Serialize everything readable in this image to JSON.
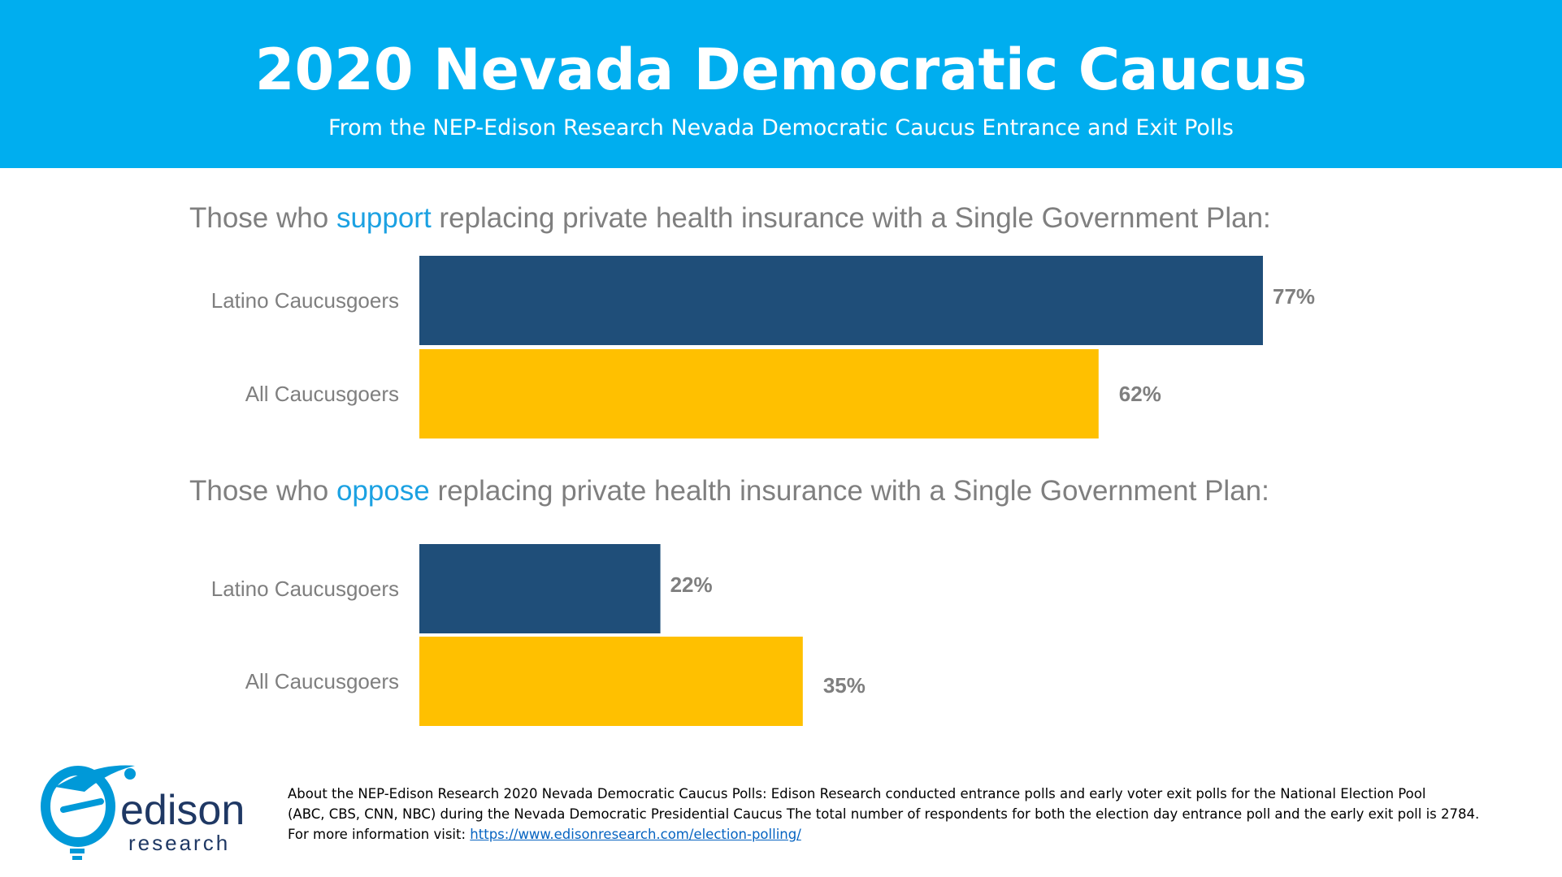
{
  "header": {
    "title": "2020 Nevada Democratic Caucus",
    "subtitle": "From the NEP-Edison Research Nevada Democratic Caucus Entrance and Exit Polls"
  },
  "colors": {
    "header_bg": "#00AEEF",
    "latino": "#1F4E79",
    "all": "#FFC000",
    "highlight": "#1BA1E2",
    "label_text": "#7F7F7F"
  },
  "chart_data": [
    {
      "type": "bar",
      "orientation": "horizontal",
      "title_parts": [
        "Those who ",
        "support",
        " replacing private health insurance with a Single Government Plan:"
      ],
      "categories": [
        "Latino Caucusgoers",
        "All Caucusgoers"
      ],
      "values": [
        77,
        62
      ],
      "value_labels": [
        "77%",
        "62%"
      ],
      "xlim": [
        0,
        100
      ]
    },
    {
      "type": "bar",
      "orientation": "horizontal",
      "title_parts": [
        "Those who ",
        "oppose",
        " replacing private health insurance with a Single Government Plan:"
      ],
      "categories": [
        "Latino Caucusgoers",
        "All Caucusgoers"
      ],
      "values": [
        22,
        35
      ],
      "value_labels": [
        "22%",
        "35%"
      ],
      "xlim": [
        0,
        100
      ]
    }
  ],
  "logo": {
    "name": "edison",
    "tagline": "research"
  },
  "footer": {
    "line1": "About the NEP-Edison Research 2020 Nevada Democratic Caucus Polls: Edison Research conducted entrance polls and early voter exit polls for the National Election Pool",
    "line2": "(ABC, CBS, CNN, NBC) during the Nevada Democratic Presidential Caucus  The total number of respondents for both the election day entrance poll and the early exit poll is 2784.",
    "line3_prefix": "For more information visit: ",
    "link": "https://www.edisonresearch.com/election-polling/"
  }
}
